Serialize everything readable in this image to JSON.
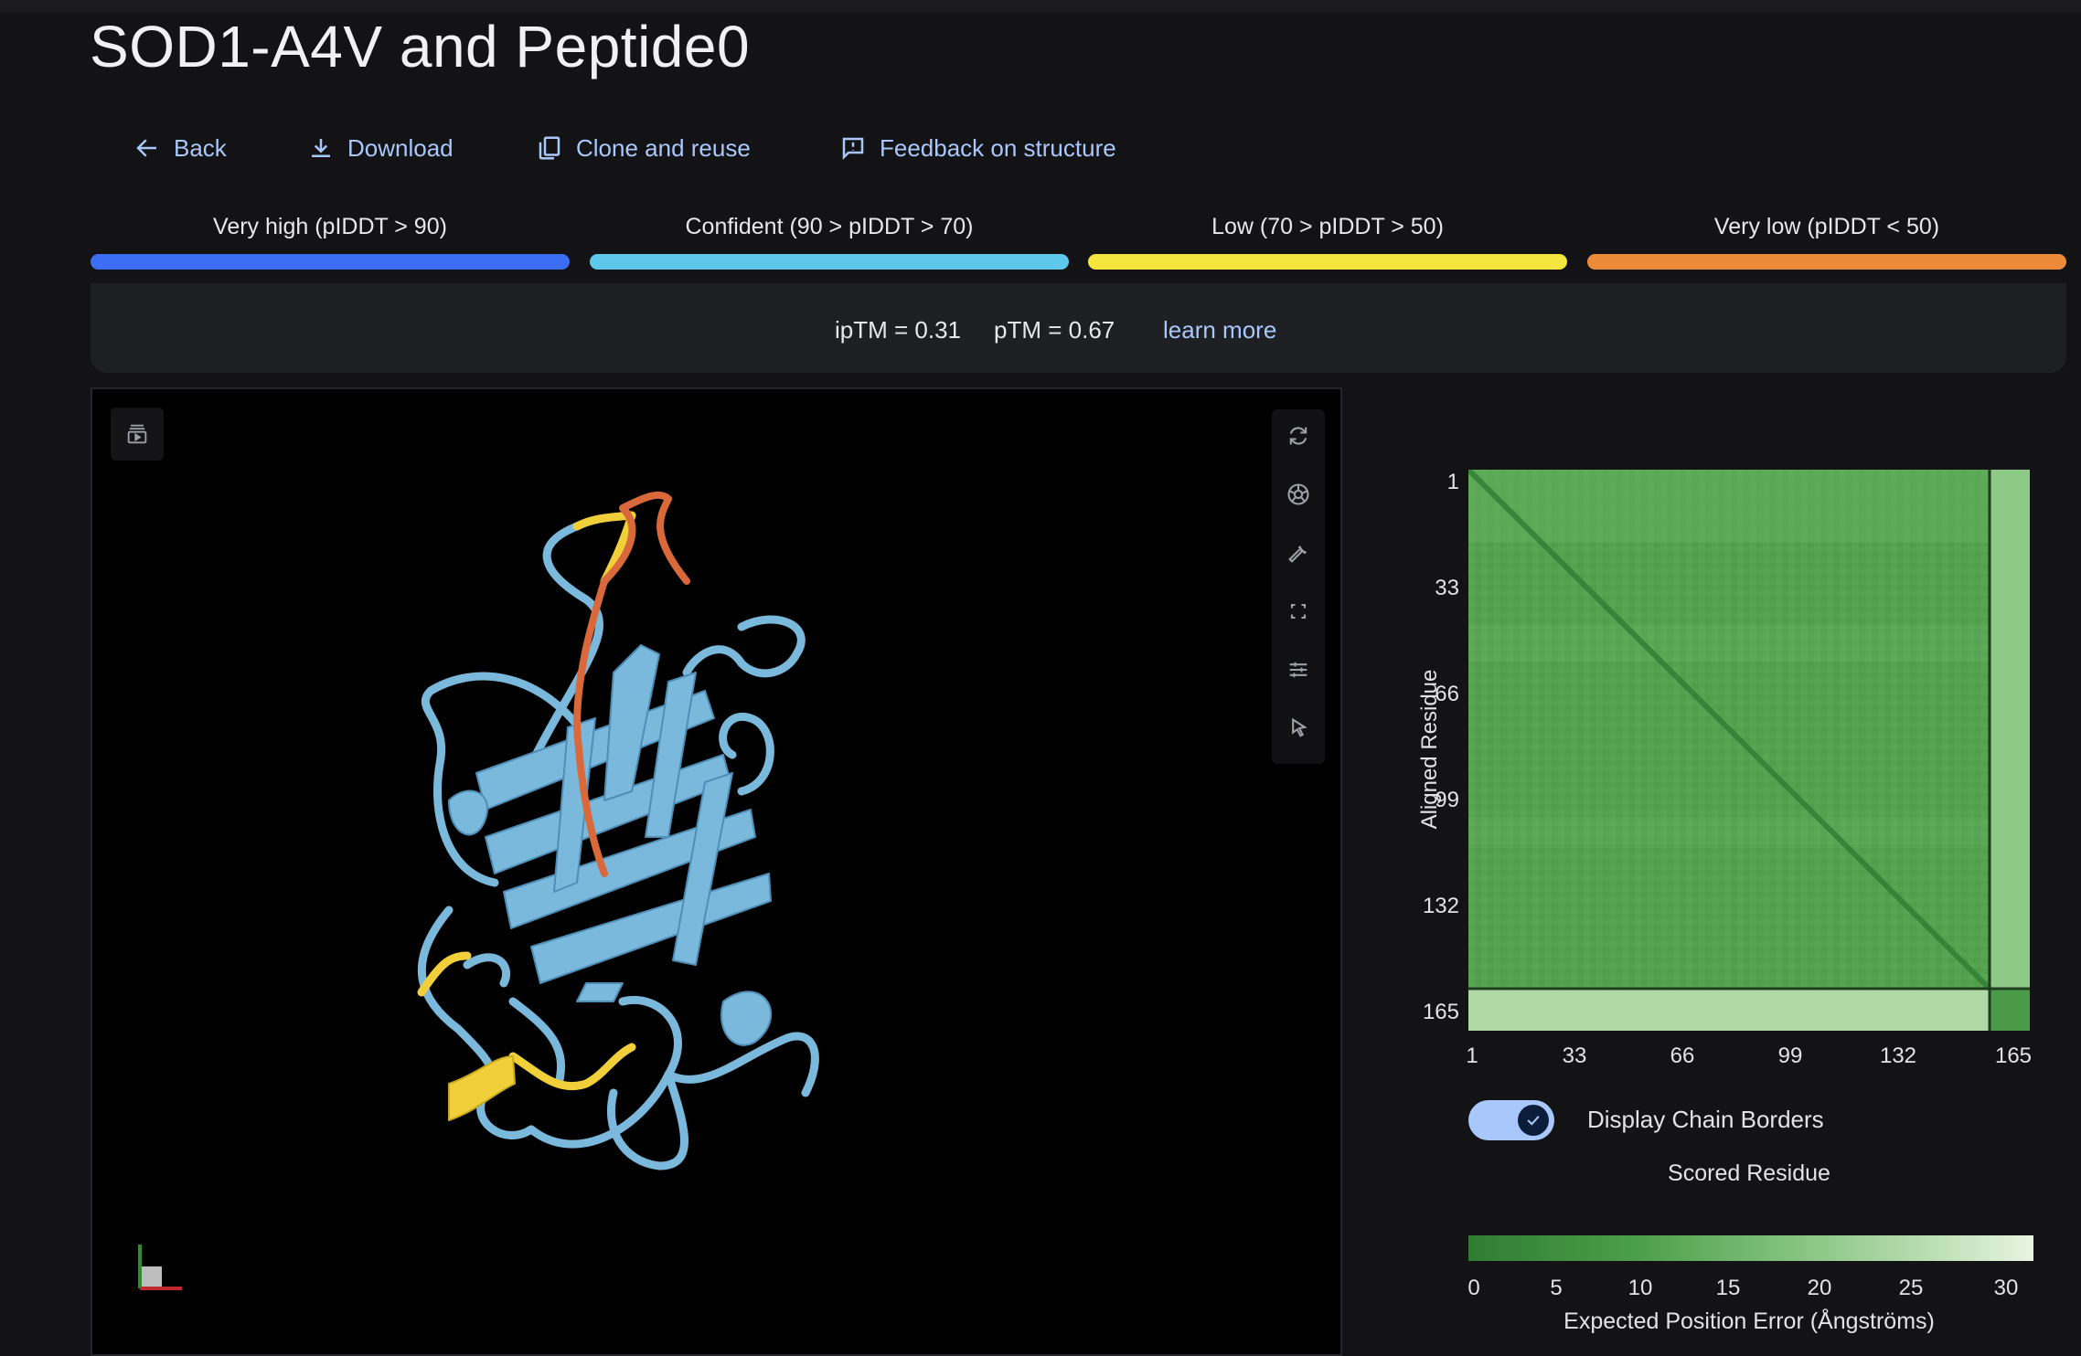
{
  "page": {
    "title": "SOD1-A4V and Peptide0"
  },
  "actions": {
    "back": "Back",
    "download": "Download",
    "clone": "Clone and reuse",
    "feedback": "Feedback on structure"
  },
  "confidence_legend": [
    {
      "label": "Very high (pIDDT > 90)",
      "color": "#3b6ef5"
    },
    {
      "label": "Confident (90 > pIDDT > 70)",
      "color": "#5ec8ec"
    },
    {
      "label": "Low (70 > pIDDT > 50)",
      "color": "#f5e63f"
    },
    {
      "label": "Very low (pIDDT < 50)",
      "color": "#ec8a3a"
    }
  ],
  "metrics": {
    "iptm": "ipTM = 0.31",
    "ptm": "pTM = 0.67",
    "learn_more": "learn more"
  },
  "viewer": {
    "structure_colors": {
      "confident": "#7ab8dc",
      "low": "#f0cf3a",
      "very_low": "#d9683a"
    },
    "toolbar_icons": [
      "play-panel-icon",
      "reset-rotate-icon",
      "camera-icon",
      "wrench-icon",
      "fullscreen-icon",
      "sliders-icon",
      "cursor-icon"
    ]
  },
  "pae": {
    "y_axis_label": "Aligned Residue",
    "x_axis_label": "Scored Residue",
    "ticks": [
      "1",
      "33",
      "66",
      "99",
      "132",
      "165"
    ],
    "toggle_label": "Display Chain Borders",
    "toggle_on": true,
    "colorbar_ticks": [
      "0",
      "5",
      "10",
      "15",
      "20",
      "25",
      "30"
    ],
    "colorbar_title": "Expected Position Error (Ångströms)"
  }
}
